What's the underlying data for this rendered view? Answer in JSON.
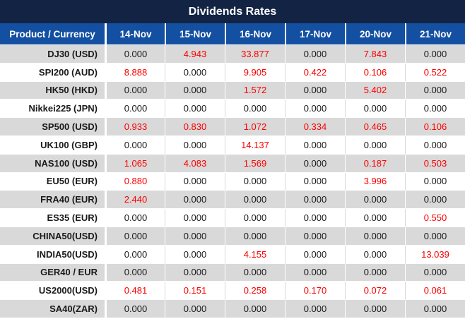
{
  "title": "Dividends Rates",
  "colors": {
    "title_bar": "#122344",
    "header_row": "#1450a2",
    "row_gray": "#d9d9d9",
    "row_white": "#ffffff",
    "value_zero_text": "#1a1a1a",
    "value_nonzero_text": "#fe0000",
    "header_text": "#ffffff"
  },
  "chart_data": {
    "type": "table",
    "title": "Dividends Rates",
    "product_header": "Product / Currency",
    "date_headers": [
      "14-Nov",
      "15-Nov",
      "16-Nov",
      "17-Nov",
      "20-Nov",
      "21-Nov"
    ],
    "rows": [
      {
        "product": "DJ30 (USD)",
        "values": [
          "0.000",
          "4.943",
          "33.877",
          "0.000",
          "7.843",
          "0.000"
        ]
      },
      {
        "product": "SPI200 (AUD)",
        "values": [
          "8.888",
          "0.000",
          "9.905",
          "0.422",
          "0.106",
          "0.522"
        ]
      },
      {
        "product": "HK50 (HKD)",
        "values": [
          "0.000",
          "0.000",
          "1.572",
          "0.000",
          "5.402",
          "0.000"
        ]
      },
      {
        "product": "Nikkei225 (JPN)",
        "values": [
          "0.000",
          "0.000",
          "0.000",
          "0.000",
          "0.000",
          "0.000"
        ]
      },
      {
        "product": "SP500 (USD)",
        "values": [
          "0.933",
          "0.830",
          "1.072",
          "0.334",
          "0.465",
          "0.106"
        ]
      },
      {
        "product": "UK100 (GBP)",
        "values": [
          "0.000",
          "0.000",
          "14.137",
          "0.000",
          "0.000",
          "0.000"
        ]
      },
      {
        "product": "NAS100 (USD)",
        "values": [
          "1.065",
          "4.083",
          "1.569",
          "0.000",
          "0.187",
          "0.503"
        ]
      },
      {
        "product": "EU50 (EUR)",
        "values": [
          "0.880",
          "0.000",
          "0.000",
          "0.000",
          "3.996",
          "0.000"
        ]
      },
      {
        "product": "FRA40 (EUR)",
        "values": [
          "2.440",
          "0.000",
          "0.000",
          "0.000",
          "0.000",
          "0.000"
        ]
      },
      {
        "product": "ES35 (EUR)",
        "values": [
          "0.000",
          "0.000",
          "0.000",
          "0.000",
          "0.000",
          "0.550"
        ]
      },
      {
        "product": "CHINA50(USD)",
        "values": [
          "0.000",
          "0.000",
          "0.000",
          "0.000",
          "0.000",
          "0.000"
        ]
      },
      {
        "product": "INDIA50(USD)",
        "values": [
          "0.000",
          "0.000",
          "4.155",
          "0.000",
          "0.000",
          "13.039"
        ]
      },
      {
        "product": "GER40 / EUR",
        "values": [
          "0.000",
          "0.000",
          "0.000",
          "0.000",
          "0.000",
          "0.000"
        ]
      },
      {
        "product": "US2000(USD)",
        "values": [
          "0.481",
          "0.151",
          "0.258",
          "0.170",
          "0.072",
          "0.061"
        ]
      },
      {
        "product": "SA40(ZAR)",
        "values": [
          "0.000",
          "0.000",
          "0.000",
          "0.000",
          "0.000",
          "0.000"
        ]
      }
    ]
  }
}
